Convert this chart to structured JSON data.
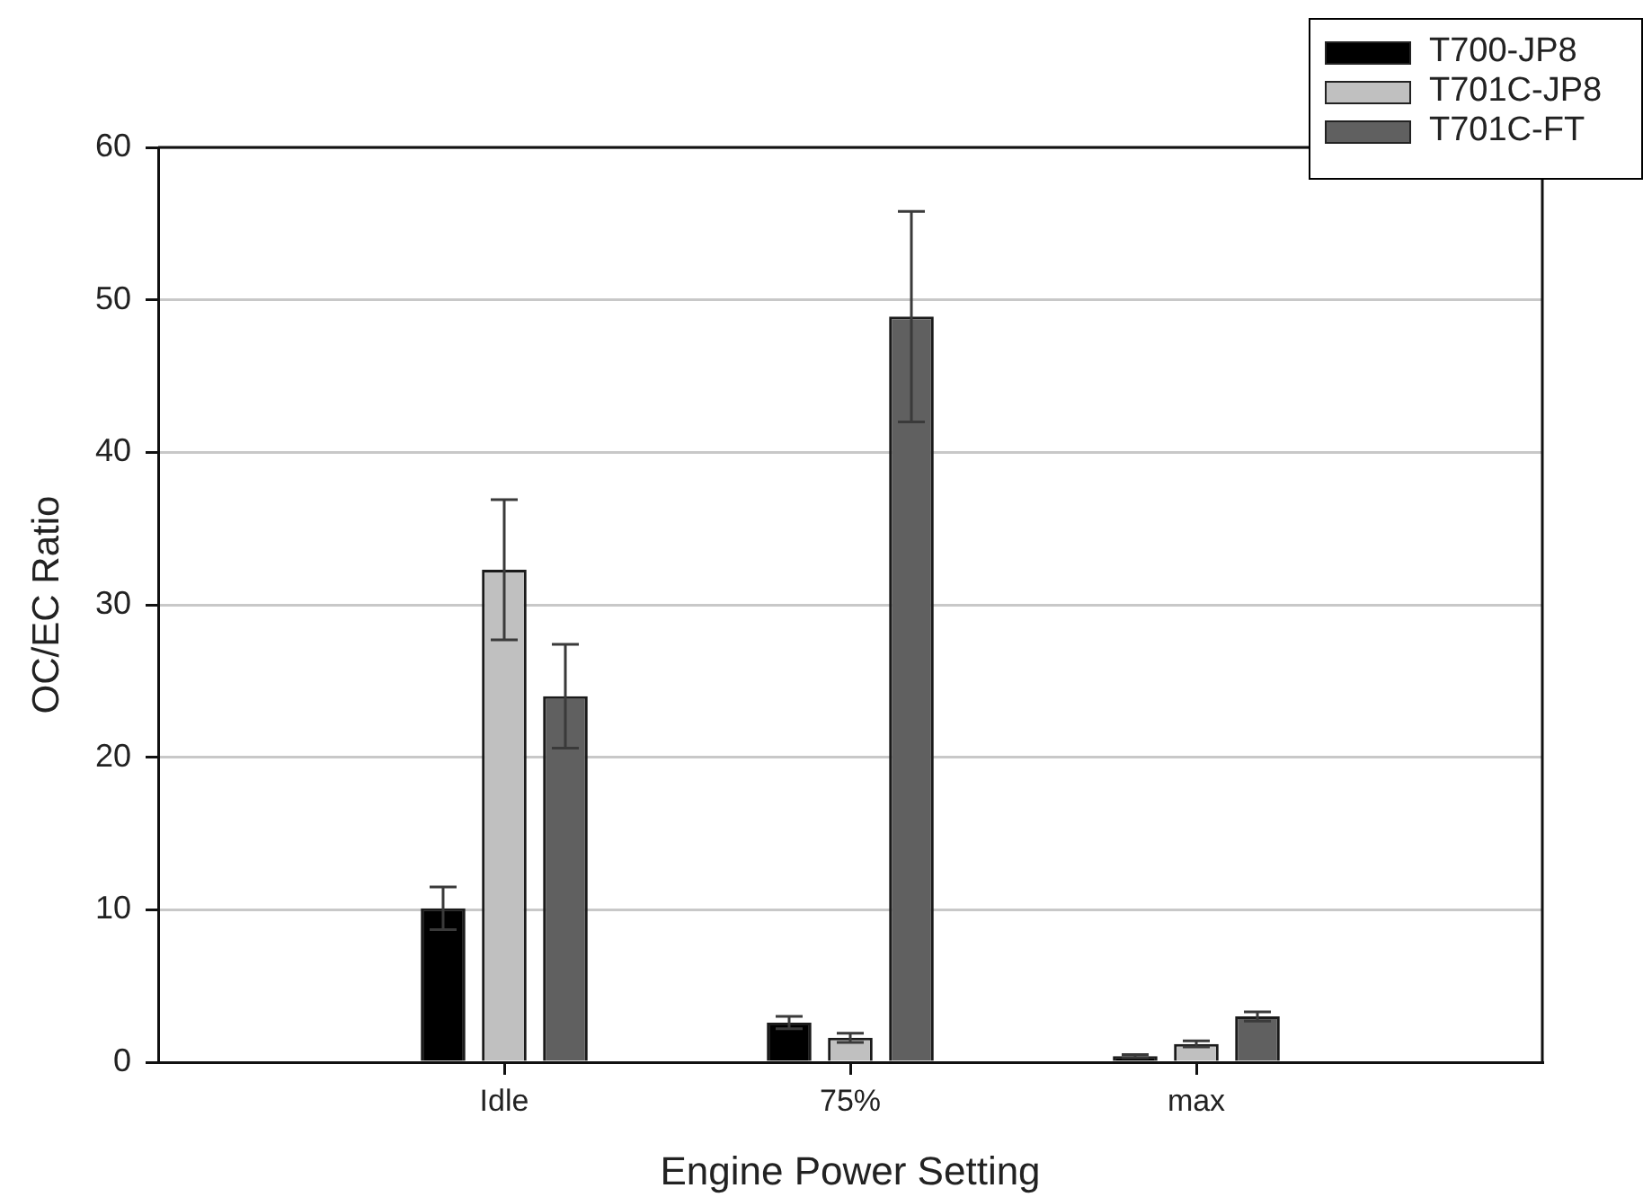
{
  "chart_data": {
    "type": "bar",
    "categories": [
      "Idle",
      "75%",
      "max"
    ],
    "xlabel": "Engine Power Setting",
    "ylabel": "OC/EC Ratio",
    "ylim": [
      0,
      60
    ],
    "yticks": [
      0,
      10,
      20,
      30,
      40,
      50,
      60
    ],
    "grid": "y",
    "legend": "top right",
    "series": [
      {
        "name": "T700-JP8",
        "color": "#000000",
        "values": [
          10.1,
          2.6,
          0.4
        ],
        "errors": [
          1.4,
          0.4,
          0.1
        ]
      },
      {
        "name": "T701C-JP8",
        "color": "#c0c0c0",
        "values": [
          32.3,
          1.6,
          1.2
        ],
        "errors": [
          4.6,
          0.3,
          0.2
        ]
      },
      {
        "name": "T701C-FT",
        "color": "#606060",
        "values": [
          24.0,
          48.9,
          3.0
        ],
        "errors": [
          3.4,
          6.9,
          0.3
        ]
      }
    ]
  }
}
